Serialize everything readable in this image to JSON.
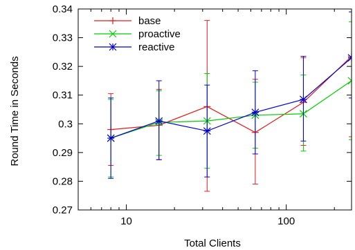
{
  "chart_data": {
    "type": "line",
    "xlabel": "Total Clients",
    "ylabel": "Round Time in Seconds",
    "xscale": "log",
    "xlim": [
      5,
      256
    ],
    "ylim": [
      0.27,
      0.34
    ],
    "x_ticks": [
      10,
      100
    ],
    "x_tick_labels": [
      "10",
      "100"
    ],
    "y_ticks": [
      0.27,
      0.28,
      0.29,
      0.3,
      0.31,
      0.32,
      0.33,
      0.34
    ],
    "y_tick_labels": [
      "0.27",
      "0.28",
      "0.29",
      "0.3",
      "0.31",
      "0.32",
      "0.33",
      "0.34"
    ],
    "legend_position": "top-left",
    "grid": false,
    "series": [
      {
        "name": "base",
        "color": "#e41a1c",
        "marker": "plus",
        "x": [
          8,
          16,
          32,
          64,
          128,
          256
        ],
        "y": [
          0.298,
          0.2995,
          0.306,
          0.297,
          0.3075,
          0.3235
        ],
        "err_low": [
          0.2855,
          0.2875,
          0.2765,
          0.279,
          0.2925,
          0.2955
        ],
        "err_high": [
          0.3105,
          0.312,
          0.336,
          0.3155,
          0.323,
          0.351
        ]
      },
      {
        "name": "proactive",
        "color": "#00cc00",
        "marker": "cross",
        "x": [
          8,
          16,
          32,
          64,
          128,
          256
        ],
        "y": [
          0.295,
          0.3005,
          0.301,
          0.303,
          0.3035,
          0.315
        ],
        "err_low": [
          0.2815,
          0.289,
          0.2845,
          0.2915,
          0.2905,
          0.2945
        ],
        "err_high": [
          0.3085,
          0.3115,
          0.3175,
          0.3145,
          0.317,
          0.3355
        ]
      },
      {
        "name": "reactive",
        "color": "#0000cc",
        "marker": "asterisk",
        "x": [
          8,
          16,
          32,
          64,
          128,
          256
        ],
        "y": [
          0.295,
          0.301,
          0.2975,
          0.304,
          0.3085,
          0.323
        ],
        "err_low": [
          0.281,
          0.2875,
          0.2815,
          0.2895,
          0.294,
          0.309
        ],
        "err_high": [
          0.309,
          0.315,
          0.3135,
          0.3185,
          0.3235,
          0.339
        ]
      }
    ]
  }
}
